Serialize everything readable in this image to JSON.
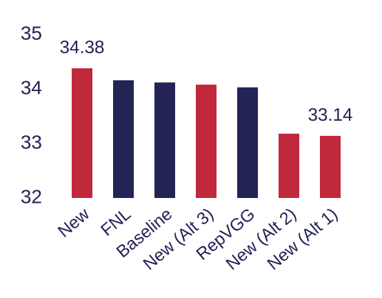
{
  "chart_data": {
    "type": "bar",
    "categories": [
      "New",
      "FNL",
      "Baseline",
      "New (Alt 3)",
      "RepVGG",
      "New (Alt 2)",
      "New (Alt 1)"
    ],
    "values": [
      34.38,
      34.16,
      34.12,
      34.08,
      34.03,
      33.18,
      33.14
    ],
    "value_labels": [
      "34.38",
      null,
      null,
      null,
      null,
      null,
      "33.14"
    ],
    "colors": [
      "#c0283c",
      "#232356",
      "#232356",
      "#c0283c",
      "#232356",
      "#c0283c",
      "#c0283c"
    ],
    "ylim": [
      32,
      35
    ],
    "yticks": [
      32,
      33,
      34,
      35
    ],
    "grid": false
  }
}
